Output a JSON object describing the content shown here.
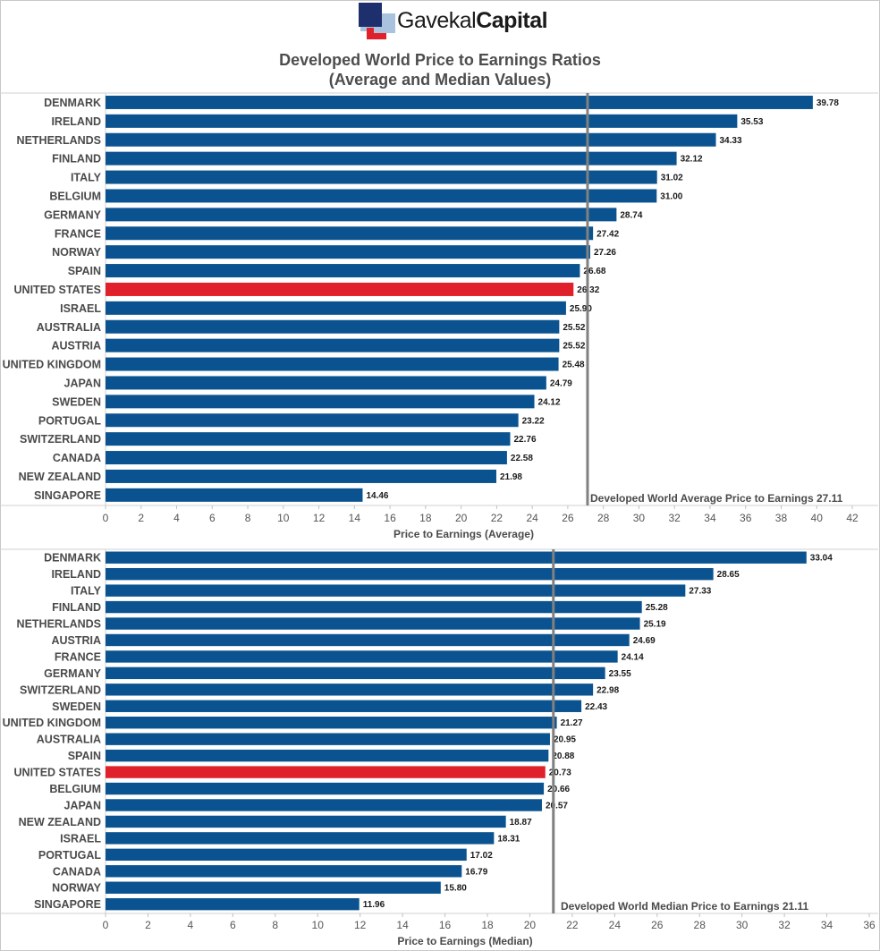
{
  "header": {
    "logo_text_1": "Gavekal",
    "logo_text_2": "Capital",
    "title_line1": "Developed World Price to Earnings Ratios",
    "title_line2": "(Average and Median Values)"
  },
  "colors": {
    "bar": "#0b5390",
    "highlight": "#e0202b",
    "reference_line": "#808080",
    "logo_dark": "#1e2f6e",
    "logo_red": "#e0202b",
    "logo_light": "#a9c3de"
  },
  "chart_data": [
    {
      "type": "bar",
      "orientation": "horizontal",
      "xlabel": "Price to Earnings (Average)",
      "xlim": [
        0,
        42
      ],
      "xticks": [
        0,
        2,
        4,
        6,
        8,
        10,
        12,
        14,
        16,
        18,
        20,
        22,
        24,
        26,
        28,
        30,
        32,
        34,
        36,
        38,
        40,
        42
      ],
      "highlight": "UNITED STATES",
      "reference": {
        "value": 27.11,
        "label": "Developed World Average Price to Earnings 27.11"
      },
      "categories": [
        "DENMARK",
        "IRELAND",
        "NETHERLANDS",
        "FINLAND",
        "ITALY",
        "BELGIUM",
        "GERMANY",
        "FRANCE",
        "NORWAY",
        "SPAIN",
        "UNITED STATES",
        "ISRAEL",
        "AUSTRALIA",
        "AUSTRIA",
        "UNITED KINGDOM",
        "JAPAN",
        "SWEDEN",
        "PORTUGAL",
        "SWITZERLAND",
        "CANADA",
        "NEW ZEALAND",
        "SINGAPORE"
      ],
      "values": [
        39.78,
        35.53,
        34.33,
        32.12,
        31.02,
        31.0,
        28.74,
        27.42,
        27.26,
        26.68,
        26.32,
        25.9,
        25.52,
        25.52,
        25.48,
        24.79,
        24.12,
        23.22,
        22.76,
        22.58,
        21.98,
        14.46
      ],
      "labels": [
        "39.78",
        "35.53",
        "34.33",
        "32.12",
        "31.02",
        "31.00",
        "28.74",
        "27.42",
        "27.26",
        "26.68",
        "26.32",
        "25.90",
        "25.52",
        "25.52",
        "25.48",
        "24.79",
        "24.12",
        "23.22",
        "22.76",
        "22.58",
        "21.98",
        "14.46"
      ]
    },
    {
      "type": "bar",
      "orientation": "horizontal",
      "xlabel": "Price to Earnings (Median)",
      "xlim": [
        0,
        36
      ],
      "xticks": [
        0,
        2,
        4,
        6,
        8,
        10,
        12,
        14,
        16,
        18,
        20,
        22,
        24,
        26,
        28,
        30,
        32,
        34,
        36
      ],
      "highlight": "UNITED STATES",
      "reference": {
        "value": 21.11,
        "label": "Developed World Median Price to Earnings 21.11"
      },
      "categories": [
        "DENMARK",
        "IRELAND",
        "ITALY",
        "FINLAND",
        "NETHERLANDS",
        "AUSTRIA",
        "FRANCE",
        "GERMANY",
        "SWITZERLAND",
        "SWEDEN",
        "UNITED KINGDOM",
        "AUSTRALIA",
        "SPAIN",
        "UNITED STATES",
        "BELGIUM",
        "JAPAN",
        "NEW ZEALAND",
        "ISRAEL",
        "PORTUGAL",
        "CANADA",
        "NORWAY",
        "SINGAPORE"
      ],
      "values": [
        33.04,
        28.65,
        27.33,
        25.28,
        25.19,
        24.69,
        24.14,
        23.55,
        22.98,
        22.43,
        21.27,
        20.95,
        20.88,
        20.73,
        20.66,
        20.57,
        18.87,
        18.31,
        17.02,
        16.79,
        15.8,
        11.96
      ],
      "labels": [
        "33.04",
        "28.65",
        "27.33",
        "25.28",
        "25.19",
        "24.69",
        "24.14",
        "23.55",
        "22.98",
        "22.43",
        "21.27",
        "20.95",
        "20.88",
        "20.73",
        "20.66",
        "20.57",
        "18.87",
        "18.31",
        "17.02",
        "16.79",
        "15.80",
        "11.96"
      ]
    }
  ]
}
